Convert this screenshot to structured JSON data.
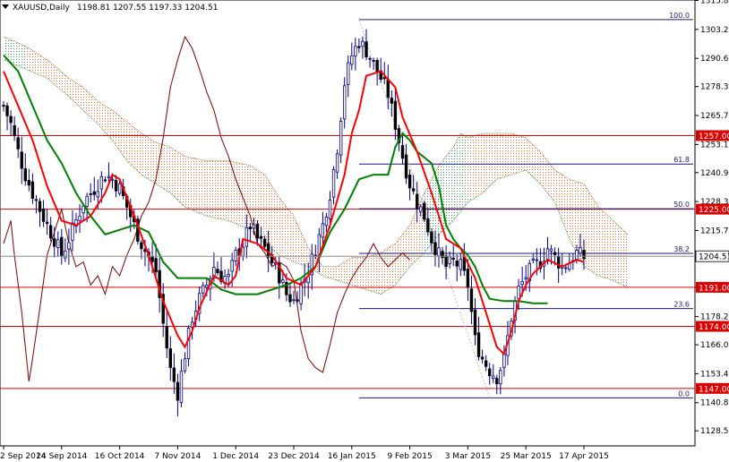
{
  "header": {
    "symbol": "XAUUSD,Daily",
    "ohlc": "1198.81 1207.55 1197.33 1204.51",
    "menu_icon": "triangle-down-icon"
  },
  "chart_data": {
    "type": "candlestick",
    "title": "XAUUSD,Daily 1198.81 1207.55 1197.33 1204.51",
    "ylim": [
      1122,
      1316
    ],
    "y_ticks": [
      1315.8,
      1303.2,
      1290.6,
      1278.35,
      1265.75,
      1253.15,
      1240.9,
      1228.3,
      1215.7,
      1203.45,
      1191.0,
      1178.25,
      1166.0,
      1153.4,
      1140.8,
      1128.55
    ],
    "x_labels": [
      "2 Sep 2014",
      "24 Sep 2014",
      "16 Oct 2014",
      "7 Nov 2014",
      "1 Dec 2014",
      "23 Dec 2014",
      "16 Jan 2015",
      "9 Feb 2015",
      "3 Mar 2015",
      "25 Mar 2015",
      "17 Apr 2015"
    ],
    "current_price": {
      "value": 1204.51,
      "label": "1204.51"
    },
    "horizontal_levels": [
      {
        "value": 1257.0,
        "label": "1257.00",
        "color": "#dd0000"
      },
      {
        "value": 1225.0,
        "label": "1225.00",
        "color": "#dd0000"
      },
      {
        "value": 1191.0,
        "label": "1191.00",
        "color": "#dd0000"
      },
      {
        "value": 1174.0,
        "label": "1174.00",
        "color": "#dd0000"
      },
      {
        "value": 1147.0,
        "label": "1147.00",
        "color": "#dd0000"
      }
    ],
    "fibonacci": {
      "high": 1307.5,
      "low": 1142.9,
      "levels": [
        {
          "ratio": 1.0,
          "label": "100.0"
        },
        {
          "ratio": 0.618,
          "label": "61.8"
        },
        {
          "ratio": 0.5,
          "label": "50.0"
        },
        {
          "ratio": 0.382,
          "label": "38.2"
        },
        {
          "ratio": 0.236,
          "label": "23.6"
        },
        {
          "ratio": 0.0,
          "label": "0.0"
        }
      ]
    },
    "colors": {
      "candle": "#00008b",
      "tenkan": "#ff0000",
      "kijun": "#008000",
      "chikou": "#800000",
      "cloud_bear": "#ff6a2a",
      "cloud_bull": "#2e9b5a",
      "level_line": "#dd0000",
      "fib_line": "#1a1a7a"
    },
    "anchors": [
      {
        "date": "2 Sep 2014",
        "i": 0
      },
      {
        "date": "24 Sep 2014",
        "i": 16
      },
      {
        "date": "16 Oct 2014",
        "i": 32
      },
      {
        "date": "7 Nov 2014",
        "i": 48
      },
      {
        "date": "1 Dec 2014",
        "i": 64
      },
      {
        "date": "23 Dec 2014",
        "i": 80
      },
      {
        "date": "16 Jan 2015",
        "i": 96
      },
      {
        "date": "9 Feb 2015",
        "i": 112
      },
      {
        "date": "3 Mar 2015",
        "i": 128
      },
      {
        "date": "25 Mar 2015",
        "i": 144
      },
      {
        "date": "17 Apr 2015",
        "i": 160
      }
    ],
    "close_path": [
      [
        0,
        1270
      ],
      [
        2,
        1262
      ],
      [
        4,
        1250
      ],
      [
        6,
        1240
      ],
      [
        8,
        1232
      ],
      [
        10,
        1225
      ],
      [
        12,
        1218
      ],
      [
        14,
        1212
      ],
      [
        16,
        1205
      ],
      [
        18,
        1212
      ],
      [
        20,
        1220
      ],
      [
        22,
        1228
      ],
      [
        24,
        1232
      ],
      [
        26,
        1236
      ],
      [
        28,
        1240
      ],
      [
        30,
        1238
      ],
      [
        32,
        1234
      ],
      [
        34,
        1226
      ],
      [
        36,
        1218
      ],
      [
        38,
        1210
      ],
      [
        40,
        1204
      ],
      [
        42,
        1198
      ],
      [
        44,
        1175
      ],
      [
        46,
        1155
      ],
      [
        48,
        1145
      ],
      [
        50,
        1162
      ],
      [
        52,
        1178
      ],
      [
        54,
        1186
      ],
      [
        56,
        1192
      ],
      [
        58,
        1200
      ],
      [
        60,
        1196
      ],
      [
        62,
        1195
      ],
      [
        64,
        1205
      ],
      [
        66,
        1210
      ],
      [
        68,
        1218
      ],
      [
        70,
        1212
      ],
      [
        72,
        1208
      ],
      [
        74,
        1202
      ],
      [
        76,
        1196
      ],
      [
        78,
        1188
      ],
      [
        80,
        1185
      ],
      [
        82,
        1192
      ],
      [
        84,
        1198
      ],
      [
        86,
        1208
      ],
      [
        88,
        1218
      ],
      [
        90,
        1232
      ],
      [
        92,
        1252
      ],
      [
        94,
        1280
      ],
      [
        96,
        1292
      ],
      [
        98,
        1298
      ],
      [
        100,
        1294
      ],
      [
        102,
        1288
      ],
      [
        104,
        1282
      ],
      [
        106,
        1275
      ],
      [
        108,
        1262
      ],
      [
        110,
        1248
      ],
      [
        112,
        1236
      ],
      [
        114,
        1228
      ],
      [
        116,
        1222
      ],
      [
        118,
        1212
      ],
      [
        120,
        1205
      ],
      [
        122,
        1200
      ],
      [
        124,
        1202
      ],
      [
        126,
        1200
      ],
      [
        128,
        1192
      ],
      [
        130,
        1168
      ],
      [
        132,
        1160
      ],
      [
        134,
        1155
      ],
      [
        136,
        1152
      ],
      [
        138,
        1160
      ],
      [
        140,
        1178
      ],
      [
        142,
        1190
      ],
      [
        144,
        1196
      ],
      [
        146,
        1200
      ],
      [
        148,
        1202
      ],
      [
        150,
        1208
      ],
      [
        152,
        1204
      ],
      [
        154,
        1200
      ],
      [
        156,
        1202
      ],
      [
        158,
        1206
      ],
      [
        160,
        1204
      ]
    ],
    "tenkan_path": [
      [
        0,
        1285
      ],
      [
        4,
        1270
      ],
      [
        8,
        1255
      ],
      [
        12,
        1235
      ],
      [
        16,
        1220
      ],
      [
        20,
        1218
      ],
      [
        24,
        1222
      ],
      [
        28,
        1232
      ],
      [
        30,
        1240
      ],
      [
        32,
        1238
      ],
      [
        36,
        1222
      ],
      [
        40,
        1205
      ],
      [
        44,
        1185
      ],
      [
        48,
        1170
      ],
      [
        50,
        1165
      ],
      [
        52,
        1172
      ],
      [
        54,
        1182
      ],
      [
        58,
        1196
      ],
      [
        62,
        1192
      ],
      [
        64,
        1196
      ],
      [
        66,
        1212
      ],
      [
        70,
        1210
      ],
      [
        74,
        1205
      ],
      [
        78,
        1195
      ],
      [
        82,
        1192
      ],
      [
        86,
        1200
      ],
      [
        90,
        1218
      ],
      [
        94,
        1240
      ],
      [
        96,
        1258
      ],
      [
        98,
        1268
      ],
      [
        100,
        1283
      ],
      [
        104,
        1285
      ],
      [
        108,
        1278
      ],
      [
        110,
        1265
      ],
      [
        114,
        1250
      ],
      [
        118,
        1232
      ],
      [
        122,
        1212
      ],
      [
        126,
        1208
      ],
      [
        130,
        1195
      ],
      [
        134,
        1175
      ],
      [
        136,
        1165
      ],
      [
        138,
        1162
      ],
      [
        140,
        1172
      ],
      [
        142,
        1185
      ],
      [
        144,
        1192
      ],
      [
        146,
        1197
      ],
      [
        150,
        1203
      ],
      [
        154,
        1200
      ],
      [
        158,
        1203
      ],
      [
        160,
        1202
      ]
    ],
    "kijun_path": [
      [
        0,
        1292
      ],
      [
        4,
        1285
      ],
      [
        8,
        1270
      ],
      [
        12,
        1255
      ],
      [
        16,
        1245
      ],
      [
        20,
        1232
      ],
      [
        24,
        1222
      ],
      [
        28,
        1214
      ],
      [
        32,
        1216
      ],
      [
        36,
        1218
      ],
      [
        40,
        1215
      ],
      [
        44,
        1202
      ],
      [
        48,
        1195
      ],
      [
        56,
        1195
      ],
      [
        60,
        1190
      ],
      [
        64,
        1188
      ],
      [
        70,
        1188
      ],
      [
        74,
        1190
      ],
      [
        78,
        1192
      ],
      [
        82,
        1195
      ],
      [
        86,
        1200
      ],
      [
        90,
        1215
      ],
      [
        94,
        1225
      ],
      [
        98,
        1238
      ],
      [
        102,
        1240
      ],
      [
        106,
        1240
      ],
      [
        108,
        1252
      ],
      [
        110,
        1258
      ],
      [
        112,
        1255
      ],
      [
        114,
        1250
      ],
      [
        118,
        1245
      ],
      [
        120,
        1235
      ],
      [
        122,
        1218
      ],
      [
        124,
        1212
      ],
      [
        126,
        1208
      ],
      [
        128,
        1205
      ],
      [
        130,
        1200
      ],
      [
        132,
        1192
      ],
      [
        134,
        1186
      ],
      [
        138,
        1185
      ],
      [
        142,
        1185
      ],
      [
        146,
        1184
      ],
      [
        150,
        1184
      ]
    ],
    "chikou_path": [
      [
        0,
        1210
      ],
      [
        2,
        1220
      ],
      [
        3,
        1205
      ],
      [
        5,
        1180
      ],
      [
        7,
        1150
      ],
      [
        8,
        1160
      ],
      [
        10,
        1182
      ],
      [
        12,
        1205
      ],
      [
        14,
        1215
      ],
      [
        16,
        1225
      ],
      [
        18,
        1210
      ],
      [
        20,
        1200
      ],
      [
        22,
        1202
      ],
      [
        24,
        1192
      ],
      [
        26,
        1196
      ],
      [
        28,
        1188
      ],
      [
        30,
        1200
      ],
      [
        32,
        1196
      ],
      [
        34,
        1205
      ],
      [
        36,
        1212
      ],
      [
        38,
        1222
      ],
      [
        40,
        1228
      ],
      [
        42,
        1238
      ],
      [
        44,
        1256
      ],
      [
        46,
        1278
      ],
      [
        48,
        1290
      ],
      [
        50,
        1300
      ],
      [
        52,
        1295
      ],
      [
        54,
        1286
      ],
      [
        56,
        1276
      ],
      [
        58,
        1268
      ],
      [
        60,
        1256
      ],
      [
        62,
        1248
      ],
      [
        64,
        1238
      ],
      [
        66,
        1230
      ],
      [
        68,
        1222
      ],
      [
        70,
        1210
      ],
      [
        72,
        1206
      ],
      [
        74,
        1200
      ],
      [
        76,
        1202
      ],
      [
        78,
        1200
      ],
      [
        80,
        1194
      ],
      [
        82,
        1172
      ],
      [
        84,
        1160
      ],
      [
        86,
        1156
      ],
      [
        88,
        1154
      ],
      [
        90,
        1166
      ],
      [
        92,
        1180
      ],
      [
        94,
        1188
      ],
      [
        96,
        1195
      ],
      [
        98,
        1200
      ],
      [
        100,
        1204
      ],
      [
        102,
        1210
      ],
      [
        104,
        1204
      ],
      [
        106,
        1200
      ],
      [
        108,
        1203
      ],
      [
        110,
        1206
      ],
      [
        112,
        1203
      ]
    ],
    "cloud": {
      "upper": [
        [
          0,
          1300
        ],
        [
          6,
          1296
        ],
        [
          12,
          1290
        ],
        [
          18,
          1282
        ],
        [
          22,
          1278
        ],
        [
          26,
          1272
        ],
        [
          30,
          1268
        ],
        [
          34,
          1263
        ],
        [
          38,
          1258
        ],
        [
          42,
          1254
        ],
        [
          46,
          1252
        ],
        [
          50,
          1248
        ],
        [
          56,
          1246
        ],
        [
          62,
          1246
        ],
        [
          68,
          1244
        ],
        [
          72,
          1240
        ],
        [
          76,
          1230
        ],
        [
          80,
          1222
        ],
        [
          84,
          1208
        ],
        [
          88,
          1200
        ],
        [
          92,
          1200
        ],
        [
          96,
          1204
        ],
        [
          100,
          1204
        ],
        [
          104,
          1206
        ],
        [
          108,
          1210
        ],
        [
          112,
          1218
        ],
        [
          116,
          1232
        ],
        [
          120,
          1244
        ],
        [
          124,
          1252
        ],
        [
          126,
          1258
        ],
        [
          128,
          1256
        ],
        [
          132,
          1258
        ],
        [
          136,
          1258
        ],
        [
          140,
          1258
        ],
        [
          144,
          1256
        ],
        [
          148,
          1250
        ],
        [
          152,
          1242
        ],
        [
          156,
          1238
        ],
        [
          160,
          1236
        ],
        [
          164,
          1226
        ],
        [
          168,
          1220
        ],
        [
          172,
          1214
        ]
      ],
      "lower": [
        [
          0,
          1290
        ],
        [
          6,
          1286
        ],
        [
          12,
          1282
        ],
        [
          18,
          1274
        ],
        [
          22,
          1268
        ],
        [
          26,
          1262
        ],
        [
          30,
          1255
        ],
        [
          34,
          1246
        ],
        [
          38,
          1240
        ],
        [
          42,
          1236
        ],
        [
          46,
          1232
        ],
        [
          50,
          1226
        ],
        [
          56,
          1222
        ],
        [
          62,
          1220
        ],
        [
          68,
          1216
        ],
        [
          72,
          1210
        ],
        [
          76,
          1205
        ],
        [
          80,
          1202
        ],
        [
          84,
          1200
        ],
        [
          88,
          1196
        ],
        [
          92,
          1194
        ],
        [
          96,
          1192
        ],
        [
          100,
          1190
        ],
        [
          104,
          1188
        ],
        [
          108,
          1192
        ],
        [
          112,
          1200
        ],
        [
          116,
          1206
        ],
        [
          120,
          1214
        ],
        [
          124,
          1220
        ],
        [
          126,
          1224
        ],
        [
          128,
          1228
        ],
        [
          132,
          1232
        ],
        [
          136,
          1238
        ],
        [
          140,
          1240
        ],
        [
          144,
          1242
        ],
        [
          148,
          1236
        ],
        [
          152,
          1228
        ],
        [
          156,
          1212
        ],
        [
          160,
          1200
        ],
        [
          164,
          1196
        ],
        [
          168,
          1194
        ],
        [
          172,
          1191
        ]
      ],
      "bullish_ranges": [
        [
          0,
          6
        ],
        [
          116,
          128
        ]
      ]
    }
  }
}
